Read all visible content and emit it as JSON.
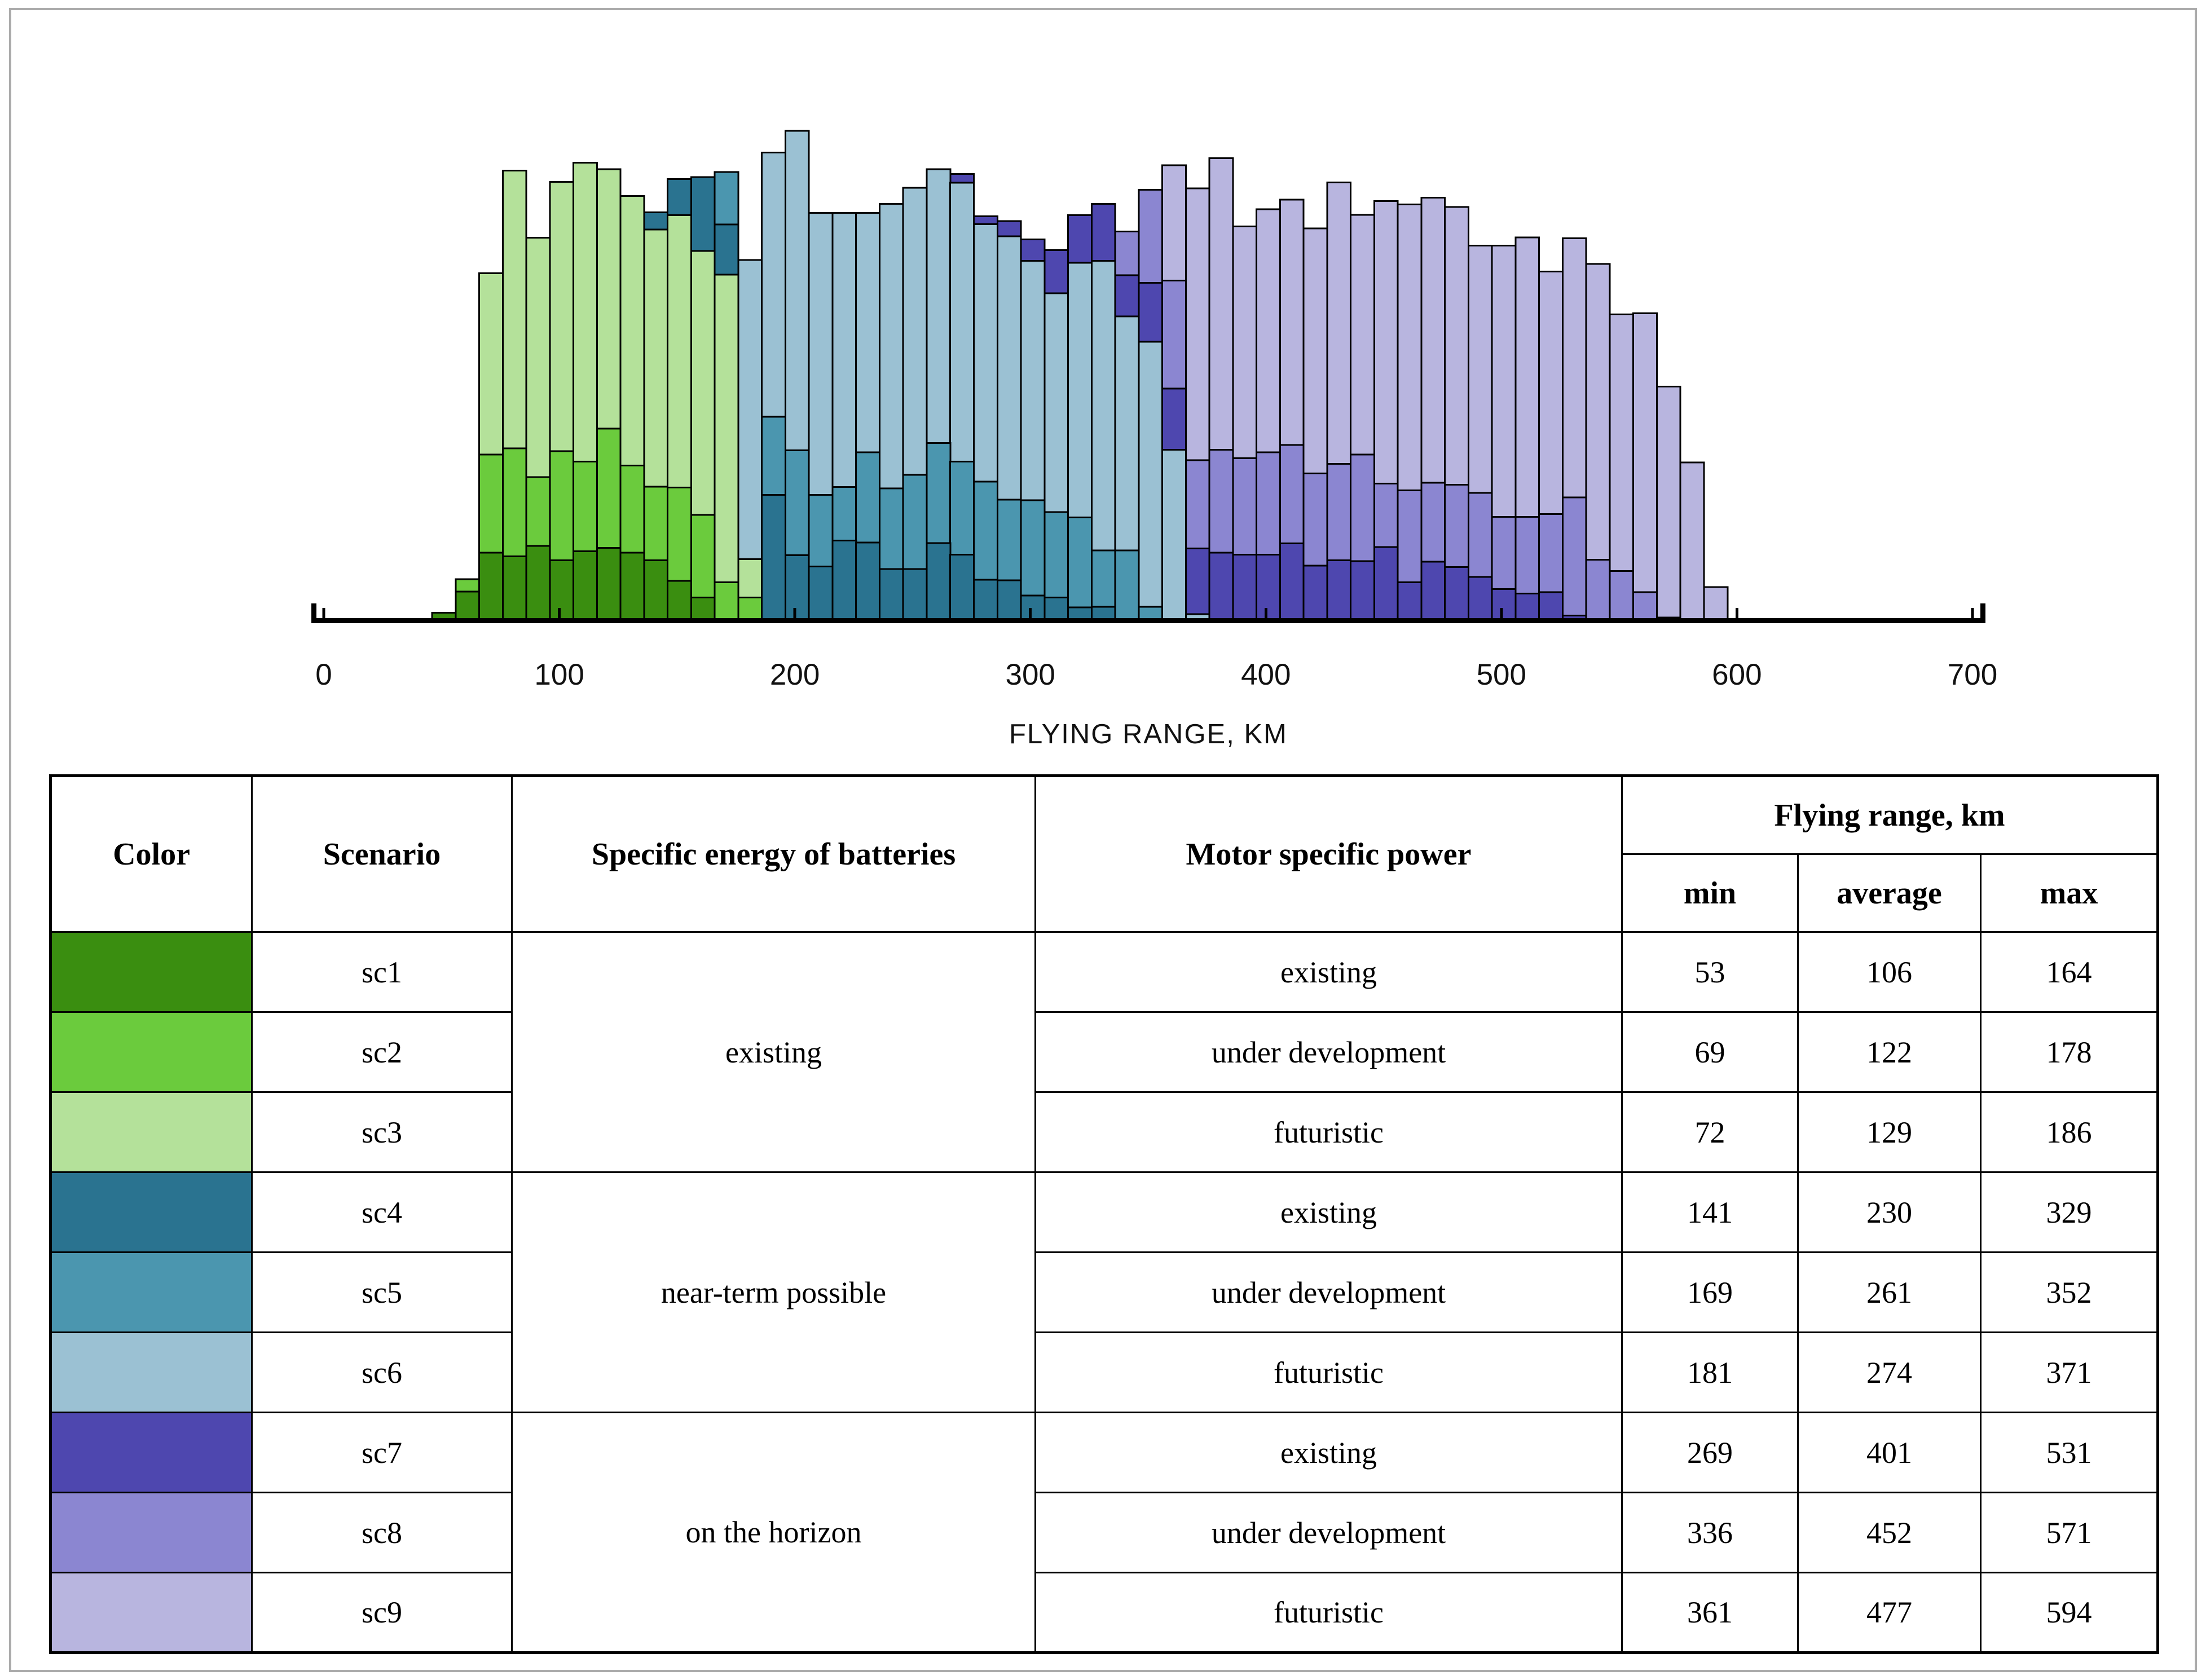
{
  "page": {
    "background": "#ffffff",
    "frame_border_color": "#ababab"
  },
  "chart_data": {
    "type": "histogram",
    "title": "",
    "xlabel": "FLYING RANGE, KM",
    "ylabel": "",
    "x_ticks": [
      0,
      100,
      200,
      300,
      400,
      500,
      600,
      700
    ],
    "xlim": [
      -6,
      706
    ],
    "grid": false,
    "legend": "table below serves as legend",
    "bin_width_km": 10,
    "y_unit": "relative bar height, % of plot height (no y-axis drawn)",
    "draw_order_back_to_front": [
      "sc9",
      "sc8",
      "sc7",
      "sc6",
      "sc5",
      "sc4",
      "sc3",
      "sc2",
      "sc1"
    ],
    "series": [
      {
        "name": "sc1",
        "color": "#3A8E10",
        "start_km": 46,
        "heights_pct": [
          1.8,
          6.1,
          14.0,
          13.3,
          15.4,
          12.5,
          14.3,
          15.0,
          14.0,
          12.5,
          8.3,
          4.9
        ]
      },
      {
        "name": "sc2",
        "color": "#6BCB3D",
        "start_km": 56,
        "heights_pct": [
          8.6,
          34.0,
          35.3,
          29.4,
          34.7,
          32.6,
          39.3,
          31.8,
          27.5,
          27.3,
          21.7,
          8.0,
          4.9
        ]
      },
      {
        "name": "sc3",
        "color": "#B4E19A",
        "start_km": 66,
        "heights_pct": [
          71.0,
          91.9,
          78.2,
          89.6,
          93.5,
          92.2,
          86.7,
          79.9,
          82.8,
          75.5,
          70.7,
          12.7
        ]
      },
      {
        "name": "sc4",
        "color": "#2A7390",
        "start_km": 136,
        "heights_pct": [
          83.4,
          90.2,
          90.6,
          80.9,
          10.0,
          25.8,
          13.5,
          11.2,
          16.5,
          16.1,
          10.7,
          10.7,
          16.0,
          13.6,
          8.5,
          8.4,
          5.3,
          4.9,
          2.9,
          3.0
        ]
      },
      {
        "name": "sc5",
        "color": "#4B96AF",
        "start_km": 166,
        "heights_pct": [
          91.6,
          11.0,
          41.7,
          34.9,
          25.8,
          27.4,
          34.5,
          27.1,
          29.9,
          36.4,
          32.6,
          28.5,
          24.8,
          24.7,
          22.3,
          21.2,
          14.5,
          14.5,
          3.0
        ]
      },
      {
        "name": "sc6",
        "color": "#9BC1D3",
        "start_km": 176,
        "heights_pct": [
          73.7,
          95.6,
          100.0,
          83.3,
          83.3,
          83.3,
          85.1,
          88.4,
          92.2,
          89.4,
          81.0,
          78.5,
          73.5,
          66.9,
          73.1,
          73.5,
          62.2,
          57.0,
          35.0,
          1.5
        ]
      },
      {
        "name": "sc7",
        "color": "#4E47AF",
        "start_km": 266,
        "heights_pct": [
          91.2,
          82.6,
          81.6,
          77.9,
          75.7,
          82.8,
          85.1,
          70.6,
          69.0,
          47.5,
          14.9,
          14.0,
          13.6,
          13.6,
          15.9,
          11.4,
          12.5,
          12.3,
          15.2,
          8.0,
          12.2,
          11.1,
          9.1,
          6.6,
          5.7,
          6.0,
          1.2
        ]
      },
      {
        "name": "sc8",
        "color": "#8B86D1",
        "start_km": 336,
        "heights_pct": [
          79.5,
          88.0,
          69.5,
          32.9,
          35.0,
          33.3,
          34.5,
          36.0,
          30.2,
          32.1,
          34.0,
          28.1,
          26.7,
          28.3,
          27.9,
          26.2,
          21.3,
          21.3,
          21.9,
          25.3,
          12.6,
          10.3,
          6.0,
          0.8
        ]
      },
      {
        "name": "sc9",
        "color": "#B8B5DF",
        "start_km": 356,
        "heights_pct": [
          93.0,
          88.3,
          94.4,
          80.5,
          84.0,
          86.0,
          80.1,
          89.5,
          82.9,
          85.7,
          85.0,
          86.4,
          84.5,
          76.6,
          76.6,
          78.3,
          71.3,
          78.1,
          72.9,
          62.6,
          62.8,
          47.9,
          32.4,
          7.0
        ]
      }
    ]
  },
  "table": {
    "headers": {
      "color": "Color",
      "scenario": "Scenario",
      "battery": "Specific energy of batteries",
      "motor": "Motor specific power",
      "flying_range": "Flying range, km",
      "min": "min",
      "average": "average",
      "max": "max"
    },
    "groups": [
      {
        "battery": "existing",
        "rows": [
          {
            "scenario": "sc1",
            "color": "#3A8E10",
            "motor": "existing",
            "min": "53",
            "average": "106",
            "max": "164"
          },
          {
            "scenario": "sc2",
            "color": "#6BCB3D",
            "motor": "under development",
            "min": "69",
            "average": "122",
            "max": "178"
          },
          {
            "scenario": "sc3",
            "color": "#B4E19A",
            "motor": "futuristic",
            "min": "72",
            "average": "129",
            "max": "186"
          }
        ]
      },
      {
        "battery": "near-term possible",
        "rows": [
          {
            "scenario": "sc4",
            "color": "#2A7390",
            "motor": "existing",
            "min": "141",
            "average": "230",
            "max": "329"
          },
          {
            "scenario": "sc5",
            "color": "#4B96AF",
            "motor": "under development",
            "min": "169",
            "average": "261",
            "max": "352"
          },
          {
            "scenario": "sc6",
            "color": "#9BC1D3",
            "motor": "futuristic",
            "min": "181",
            "average": "274",
            "max": "371"
          }
        ]
      },
      {
        "battery": "on the horizon",
        "rows": [
          {
            "scenario": "sc7",
            "color": "#4E47AF",
            "motor": "existing",
            "min": "269",
            "average": "401",
            "max": "531"
          },
          {
            "scenario": "sc8",
            "color": "#8B86D1",
            "motor": "under development",
            "min": "336",
            "average": "452",
            "max": "571"
          },
          {
            "scenario": "sc9",
            "color": "#B8B5DF",
            "motor": "futuristic",
            "min": "361",
            "average": "477",
            "max": "594"
          }
        ]
      }
    ]
  }
}
